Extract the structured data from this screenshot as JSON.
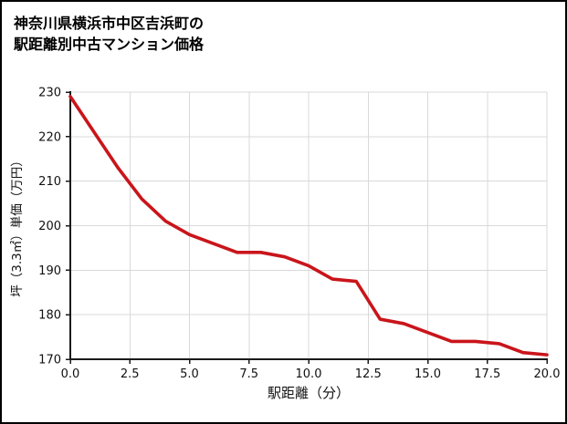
{
  "title": {
    "line1": "神奈川県横浜市中区吉浜町の",
    "line2": "駅距離別中古マンション価格"
  },
  "chart_data": {
    "type": "line",
    "title": "神奈川県横浜市中区吉浜町の駅距離別中古マンション価格",
    "xlabel": "駅距離（分）",
    "ylabel": "坪（3.3㎡）単価（万円）",
    "x": [
      0,
      1,
      2,
      3,
      4,
      5,
      6,
      7,
      8,
      9,
      10,
      11,
      12,
      13,
      14,
      15,
      16,
      17,
      18,
      19,
      20
    ],
    "values": [
      229,
      221,
      213,
      206,
      201,
      198,
      196,
      194,
      194,
      193,
      191,
      188,
      187.5,
      179,
      178,
      176,
      174,
      174,
      173.5,
      171.5,
      171
    ],
    "xlim": [
      0,
      20
    ],
    "ylim": [
      170,
      230
    ],
    "x_ticks": [
      0,
      2.5,
      5,
      7.5,
      10,
      12.5,
      15,
      17.5,
      20
    ],
    "x_tick_labels": [
      "0.0",
      "2.5",
      "5.0",
      "7.5",
      "10.0",
      "12.5",
      "15.0",
      "17.5",
      "20.0"
    ],
    "y_ticks": [
      170,
      180,
      190,
      200,
      210,
      220,
      230
    ],
    "y_tick_labels": [
      "170",
      "180",
      "190",
      "200",
      "210",
      "220",
      "230"
    ],
    "grid": true,
    "legend": "none",
    "line_color": "#c9151b",
    "grid_color": "#d9d9d9",
    "axis_color": "#1a1a1a"
  }
}
